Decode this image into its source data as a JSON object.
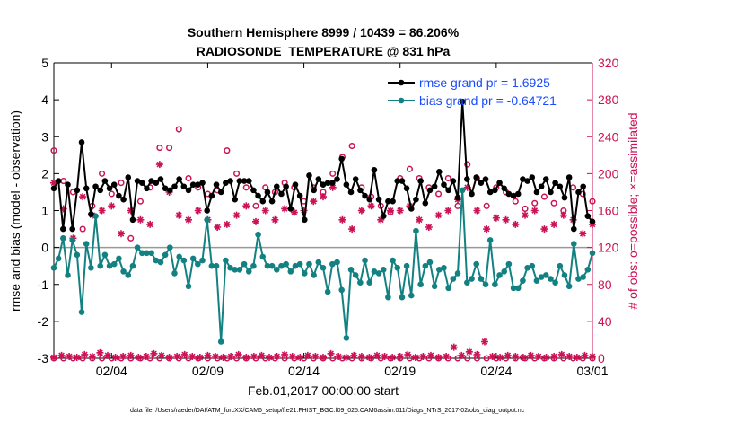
{
  "chart_data": {
    "type": "line",
    "title": [
      "Southern Hemisphere 8999 / 10439 = 86.206%",
      "RADIOSONDE_TEMPERATURE @ 831 hPa"
    ],
    "xlabel": "Feb.01,2017 00:00:00 start",
    "ylabel_left": "rmse and bias (model - observation)",
    "ylabel_right": "# of obs: o=possible; ×=assimilated",
    "footnote": "data file: /Users/raeder/DAI/ATM_forcXX/CAM6_setup/f.e21.FHIST_BGC.f09_025.CAM6assim.011/Diags_NTrS_2017-02/obs_diag_output.nc",
    "xlim": [
      1.0,
      29.0
    ],
    "ylim_left": [
      -3,
      5
    ],
    "ylim_right": [
      0,
      320
    ],
    "xtick_positions": [
      4,
      9,
      14,
      19,
      24,
      29
    ],
    "xtick_labels": [
      "02/04",
      "02/09",
      "02/14",
      "02/19",
      "02/24",
      "03/01"
    ],
    "ytick_left": [
      "-3",
      "-2",
      "-1",
      "0",
      "1",
      "2",
      "3",
      "4",
      "5"
    ],
    "ytick_right": [
      "0",
      "40",
      "80",
      "120",
      "160",
      "200",
      "240",
      "280",
      "320"
    ],
    "legend": [
      {
        "label": "rmse grand pr = 1.6925",
        "color": "#000000"
      },
      {
        "label": "bias grand pr = -0.64721",
        "color": "#138182"
      }
    ],
    "colors": {
      "rmse": "#000000",
      "bias": "#138182",
      "obs": "#cc1155",
      "zero_line": "#999999"
    },
    "series": [
      {
        "name": "rmse",
        "values": [
          1.6,
          1.8,
          0.5,
          1.7,
          0.5,
          1.55,
          2.85,
          1.6,
          0.9,
          1.65,
          1.55,
          1.8,
          1.6,
          1.7,
          1.4,
          1.3,
          1.9,
          0.75,
          1.8,
          1.75,
          1.6,
          1.8,
          1.75,
          1.85,
          1.6,
          1.55,
          1.65,
          1.85,
          1.65,
          1.55,
          1.7,
          1.7,
          1.75,
          1.0,
          1.4,
          1.7,
          1.5,
          1.75,
          1.8,
          1.3,
          1.8,
          1.8,
          1.8,
          1.55,
          1.4,
          1.25,
          1.5,
          1.25,
          1.65,
          1.45,
          1.65,
          1.05,
          1.7,
          1.4,
          0.75,
          1.95,
          1.55,
          1.85,
          1.7,
          1.75,
          1.75,
          1.85,
          2.4,
          1.7,
          1.5,
          1.85,
          1.55,
          1.4,
          1.3,
          2.1,
          1.3,
          0.85,
          1.25,
          1.25,
          1.8,
          1.8,
          1.6,
          1.05,
          1.3,
          1.8,
          1.2,
          1.55,
          1.65,
          2.05,
          1.7,
          1.55,
          1.8,
          1.35,
          3.95,
          1.85,
          1.45,
          1.9,
          1.75,
          1.85,
          1.5,
          1.55,
          1.75,
          1.6,
          1.45,
          1.4,
          1.45,
          1.85,
          1.8,
          1.9,
          1.5,
          1.65,
          1.85,
          1.5,
          1.75,
          1.65,
          1.35,
          1.9,
          0.5,
          1.5,
          1.65,
          0.85,
          0.7
        ]
      },
      {
        "name": "bias",
        "values": [
          -0.55,
          -0.3,
          0.25,
          -0.75,
          0.2,
          -0.2,
          -1.75,
          0.1,
          -0.55,
          0.85,
          -0.5,
          -0.2,
          -0.5,
          -0.45,
          -0.3,
          -0.65,
          -0.75,
          -0.5,
          0.0,
          -0.15,
          -0.15,
          -0.15,
          -0.35,
          -0.4,
          -0.2,
          0.0,
          -0.7,
          -0.25,
          -0.35,
          -1.05,
          -0.3,
          -0.45,
          -0.35,
          0.75,
          -0.5,
          -0.5,
          -2.55,
          -0.35,
          -0.55,
          -0.6,
          -0.6,
          -0.45,
          -0.65,
          -0.5,
          0.35,
          -0.25,
          -0.5,
          -0.5,
          -0.6,
          -0.5,
          -0.45,
          -0.65,
          -0.5,
          -0.45,
          -0.7,
          -0.45,
          -0.75,
          -0.4,
          -0.55,
          -1.2,
          -0.45,
          -0.4,
          -1.15,
          -2.45,
          -0.6,
          -0.75,
          -0.95,
          -0.35,
          -0.95,
          -0.65,
          -0.7,
          -0.6,
          -1.35,
          -0.35,
          -0.55,
          -1.35,
          -0.5,
          -1.3,
          0.45,
          -1.0,
          -0.5,
          -0.4,
          -1.05,
          -0.6,
          -0.55,
          -1.1,
          -0.85,
          -0.7,
          1.55,
          -0.95,
          -0.85,
          -0.45,
          -0.85,
          -1.0,
          0.2,
          -1.0,
          -0.75,
          -0.65,
          -0.45,
          -1.1,
          -1.1,
          -0.9,
          -0.55,
          -0.5,
          -0.9,
          -0.8,
          -0.75,
          -0.85,
          -0.95,
          -0.5,
          -0.75,
          -1.05,
          0.1,
          -0.85,
          -0.8,
          -0.6,
          -0.15
        ]
      },
      {
        "name": "obs_possible",
        "points": [
          [
            1.0,
            225
          ],
          [
            1.5,
            192
          ],
          [
            2.0,
            180
          ],
          [
            2.5,
            140
          ],
          [
            3.0,
            165
          ],
          [
            3.5,
            200
          ],
          [
            4.0,
            178
          ],
          [
            4.5,
            190
          ],
          [
            5.0,
            130
          ],
          [
            5.5,
            170
          ],
          [
            6.0,
            185
          ],
          [
            6.5,
            228
          ],
          [
            7.0,
            228
          ],
          [
            7.5,
            248
          ],
          [
            8.0,
            195
          ],
          [
            8.5,
            185
          ],
          [
            9.0,
            178
          ],
          [
            9.5,
            182
          ],
          [
            10.0,
            225
          ],
          [
            10.5,
            200
          ],
          [
            11.0,
            185
          ],
          [
            11.5,
            165
          ],
          [
            12.0,
            185
          ],
          [
            12.5,
            180
          ],
          [
            13.0,
            190
          ],
          [
            13.5,
            185
          ],
          [
            14.0,
            170
          ],
          [
            14.5,
            185
          ],
          [
            15.0,
            180
          ],
          [
            15.5,
            200
          ],
          [
            16.0,
            218
          ],
          [
            16.5,
            230
          ],
          [
            17.0,
            185
          ],
          [
            17.5,
            175
          ],
          [
            18.0,
            165
          ],
          [
            18.5,
            158
          ],
          [
            19.0,
            195
          ],
          [
            19.5,
            205
          ],
          [
            20.0,
            195
          ],
          [
            20.5,
            185
          ],
          [
            21.0,
            178
          ],
          [
            21.5,
            195
          ],
          [
            22.0,
            165
          ],
          [
            22.5,
            210
          ],
          [
            23.0,
            195
          ],
          [
            23.5,
            165
          ],
          [
            24.0,
            185
          ],
          [
            24.5,
            180
          ],
          [
            25.0,
            170
          ],
          [
            25.5,
            162
          ],
          [
            26.0,
            168
          ],
          [
            26.5,
            175
          ],
          [
            27.0,
            168
          ],
          [
            27.5,
            160
          ],
          [
            28.0,
            185
          ],
          [
            28.5,
            178
          ],
          [
            29.0,
            170
          ]
        ]
      },
      {
        "name": "obs_assimilated",
        "points": [
          [
            1.0,
            190
          ],
          [
            1.5,
            162
          ],
          [
            2.0,
            130
          ],
          [
            2.5,
            175
          ],
          [
            3.0,
            155
          ],
          [
            3.5,
            160
          ],
          [
            4.0,
            165
          ],
          [
            4.5,
            135
          ],
          [
            5.0,
            160
          ],
          [
            5.5,
            150
          ],
          [
            6.0,
            145
          ],
          [
            6.5,
            210
          ],
          [
            7.0,
            180
          ],
          [
            7.5,
            155
          ],
          [
            8.0,
            150
          ],
          [
            8.5,
            160
          ],
          [
            9.0,
            150
          ],
          [
            9.5,
            142
          ],
          [
            10.0,
            145
          ],
          [
            10.5,
            155
          ],
          [
            11.0,
            165
          ],
          [
            11.5,
            148
          ],
          [
            12.0,
            160
          ],
          [
            12.5,
            150
          ],
          [
            13.0,
            162
          ],
          [
            13.5,
            158
          ],
          [
            14.0,
            160
          ],
          [
            14.5,
            170
          ],
          [
            15.0,
            175
          ],
          [
            15.5,
            185
          ],
          [
            16.0,
            150
          ],
          [
            16.5,
            140
          ],
          [
            17.0,
            160
          ],
          [
            17.5,
            165
          ],
          [
            18.0,
            150
          ],
          [
            18.5,
            160
          ],
          [
            19.0,
            160
          ],
          [
            19.5,
            165
          ],
          [
            20.0,
            150
          ],
          [
            20.5,
            142
          ],
          [
            21.0,
            155
          ],
          [
            21.5,
            160
          ],
          [
            22.0,
            172
          ],
          [
            22.5,
            185
          ],
          [
            23.0,
            160
          ],
          [
            23.5,
            140
          ],
          [
            24.0,
            152
          ],
          [
            24.5,
            150
          ],
          [
            25.0,
            145
          ],
          [
            25.5,
            155
          ],
          [
            26.0,
            160
          ],
          [
            26.5,
            140
          ],
          [
            27.0,
            145
          ],
          [
            27.5,
            155
          ],
          [
            28.0,
            150
          ],
          [
            28.5,
            135
          ],
          [
            29.0,
            145
          ]
        ]
      },
      {
        "name": "obs_possible_low",
        "points": [
          [
            1.0,
            0
          ],
          [
            1.5,
            0
          ],
          [
            2.0,
            0
          ],
          [
            2.5,
            0
          ],
          [
            3.0,
            0
          ],
          [
            3.5,
            0
          ],
          [
            4.0,
            0
          ],
          [
            4.5,
            0
          ],
          [
            5.0,
            0
          ],
          [
            5.5,
            0
          ],
          [
            6.0,
            0
          ],
          [
            6.5,
            0
          ],
          [
            7.0,
            0
          ],
          [
            7.5,
            0
          ],
          [
            8.0,
            0
          ],
          [
            8.5,
            0
          ],
          [
            9.0,
            0
          ],
          [
            9.5,
            0
          ],
          [
            10.0,
            0
          ],
          [
            10.5,
            0
          ],
          [
            11.0,
            0
          ],
          [
            11.5,
            0
          ],
          [
            12.0,
            0
          ],
          [
            12.5,
            0
          ],
          [
            13.0,
            0
          ],
          [
            13.5,
            0
          ],
          [
            14.0,
            0
          ],
          [
            14.5,
            0
          ],
          [
            15.0,
            0
          ],
          [
            15.5,
            0
          ],
          [
            16.0,
            0
          ],
          [
            16.5,
            0
          ],
          [
            17.0,
            0
          ],
          [
            17.5,
            0
          ],
          [
            18.0,
            0
          ],
          [
            18.5,
            0
          ],
          [
            19.0,
            0
          ],
          [
            19.5,
            0
          ],
          [
            20.0,
            0
          ],
          [
            20.5,
            0
          ],
          [
            21.0,
            0
          ],
          [
            21.5,
            0
          ],
          [
            22.0,
            0
          ],
          [
            22.5,
            0
          ],
          [
            23.0,
            0
          ],
          [
            23.5,
            0
          ],
          [
            24.0,
            0
          ],
          [
            24.5,
            0
          ],
          [
            25.0,
            0
          ],
          [
            25.5,
            0
          ],
          [
            26.0,
            0
          ],
          [
            26.5,
            0
          ],
          [
            27.0,
            0
          ],
          [
            27.5,
            0
          ],
          [
            28.0,
            0
          ],
          [
            28.5,
            0
          ],
          [
            29.0,
            0
          ]
        ]
      },
      {
        "name": "obs_assimilated_low",
        "points": [
          [
            1.0,
            1
          ],
          [
            1.4,
            3
          ],
          [
            1.8,
            2
          ],
          [
            2.2,
            1
          ],
          [
            2.6,
            4
          ],
          [
            3.0,
            2
          ],
          [
            3.4,
            6
          ],
          [
            3.8,
            3
          ],
          [
            4.2,
            1
          ],
          [
            4.6,
            2
          ],
          [
            5.0,
            3
          ],
          [
            5.4,
            1
          ],
          [
            5.8,
            2
          ],
          [
            6.2,
            5
          ],
          [
            6.6,
            3
          ],
          [
            7.0,
            1
          ],
          [
            7.4,
            2
          ],
          [
            7.8,
            4
          ],
          [
            8.2,
            2
          ],
          [
            8.6,
            1
          ],
          [
            9.0,
            3
          ],
          [
            9.4,
            2
          ],
          [
            9.8,
            1
          ],
          [
            10.2,
            2
          ],
          [
            10.6,
            4
          ],
          [
            11.0,
            1
          ],
          [
            11.4,
            2
          ],
          [
            11.8,
            3
          ],
          [
            12.2,
            1
          ],
          [
            12.6,
            2
          ],
          [
            13.0,
            4
          ],
          [
            13.4,
            2
          ],
          [
            13.8,
            1
          ],
          [
            14.2,
            3
          ],
          [
            14.6,
            2
          ],
          [
            15.0,
            1
          ],
          [
            15.4,
            5
          ],
          [
            15.8,
            2
          ],
          [
            16.2,
            1
          ],
          [
            16.6,
            3
          ],
          [
            17.0,
            2
          ],
          [
            17.4,
            1
          ],
          [
            17.8,
            3
          ],
          [
            18.2,
            2
          ],
          [
            18.6,
            1
          ],
          [
            19.0,
            2
          ],
          [
            19.4,
            4
          ],
          [
            19.8,
            1
          ],
          [
            20.2,
            2
          ],
          [
            20.6,
            3
          ],
          [
            21.0,
            1
          ],
          [
            21.4,
            2
          ],
          [
            21.8,
            12
          ],
          [
            22.2,
            3
          ],
          [
            22.6,
            7
          ],
          [
            23.0,
            4
          ],
          [
            23.4,
            18
          ],
          [
            23.8,
            2
          ],
          [
            24.2,
            1
          ],
          [
            24.6,
            3
          ],
          [
            25.0,
            2
          ],
          [
            25.4,
            1
          ],
          [
            25.8,
            3
          ],
          [
            26.2,
            2
          ],
          [
            26.6,
            1
          ],
          [
            27.0,
            2
          ],
          [
            27.4,
            4
          ],
          [
            27.8,
            2
          ],
          [
            28.2,
            1
          ],
          [
            28.6,
            3
          ],
          [
            29.0,
            2
          ]
        ]
      }
    ]
  }
}
